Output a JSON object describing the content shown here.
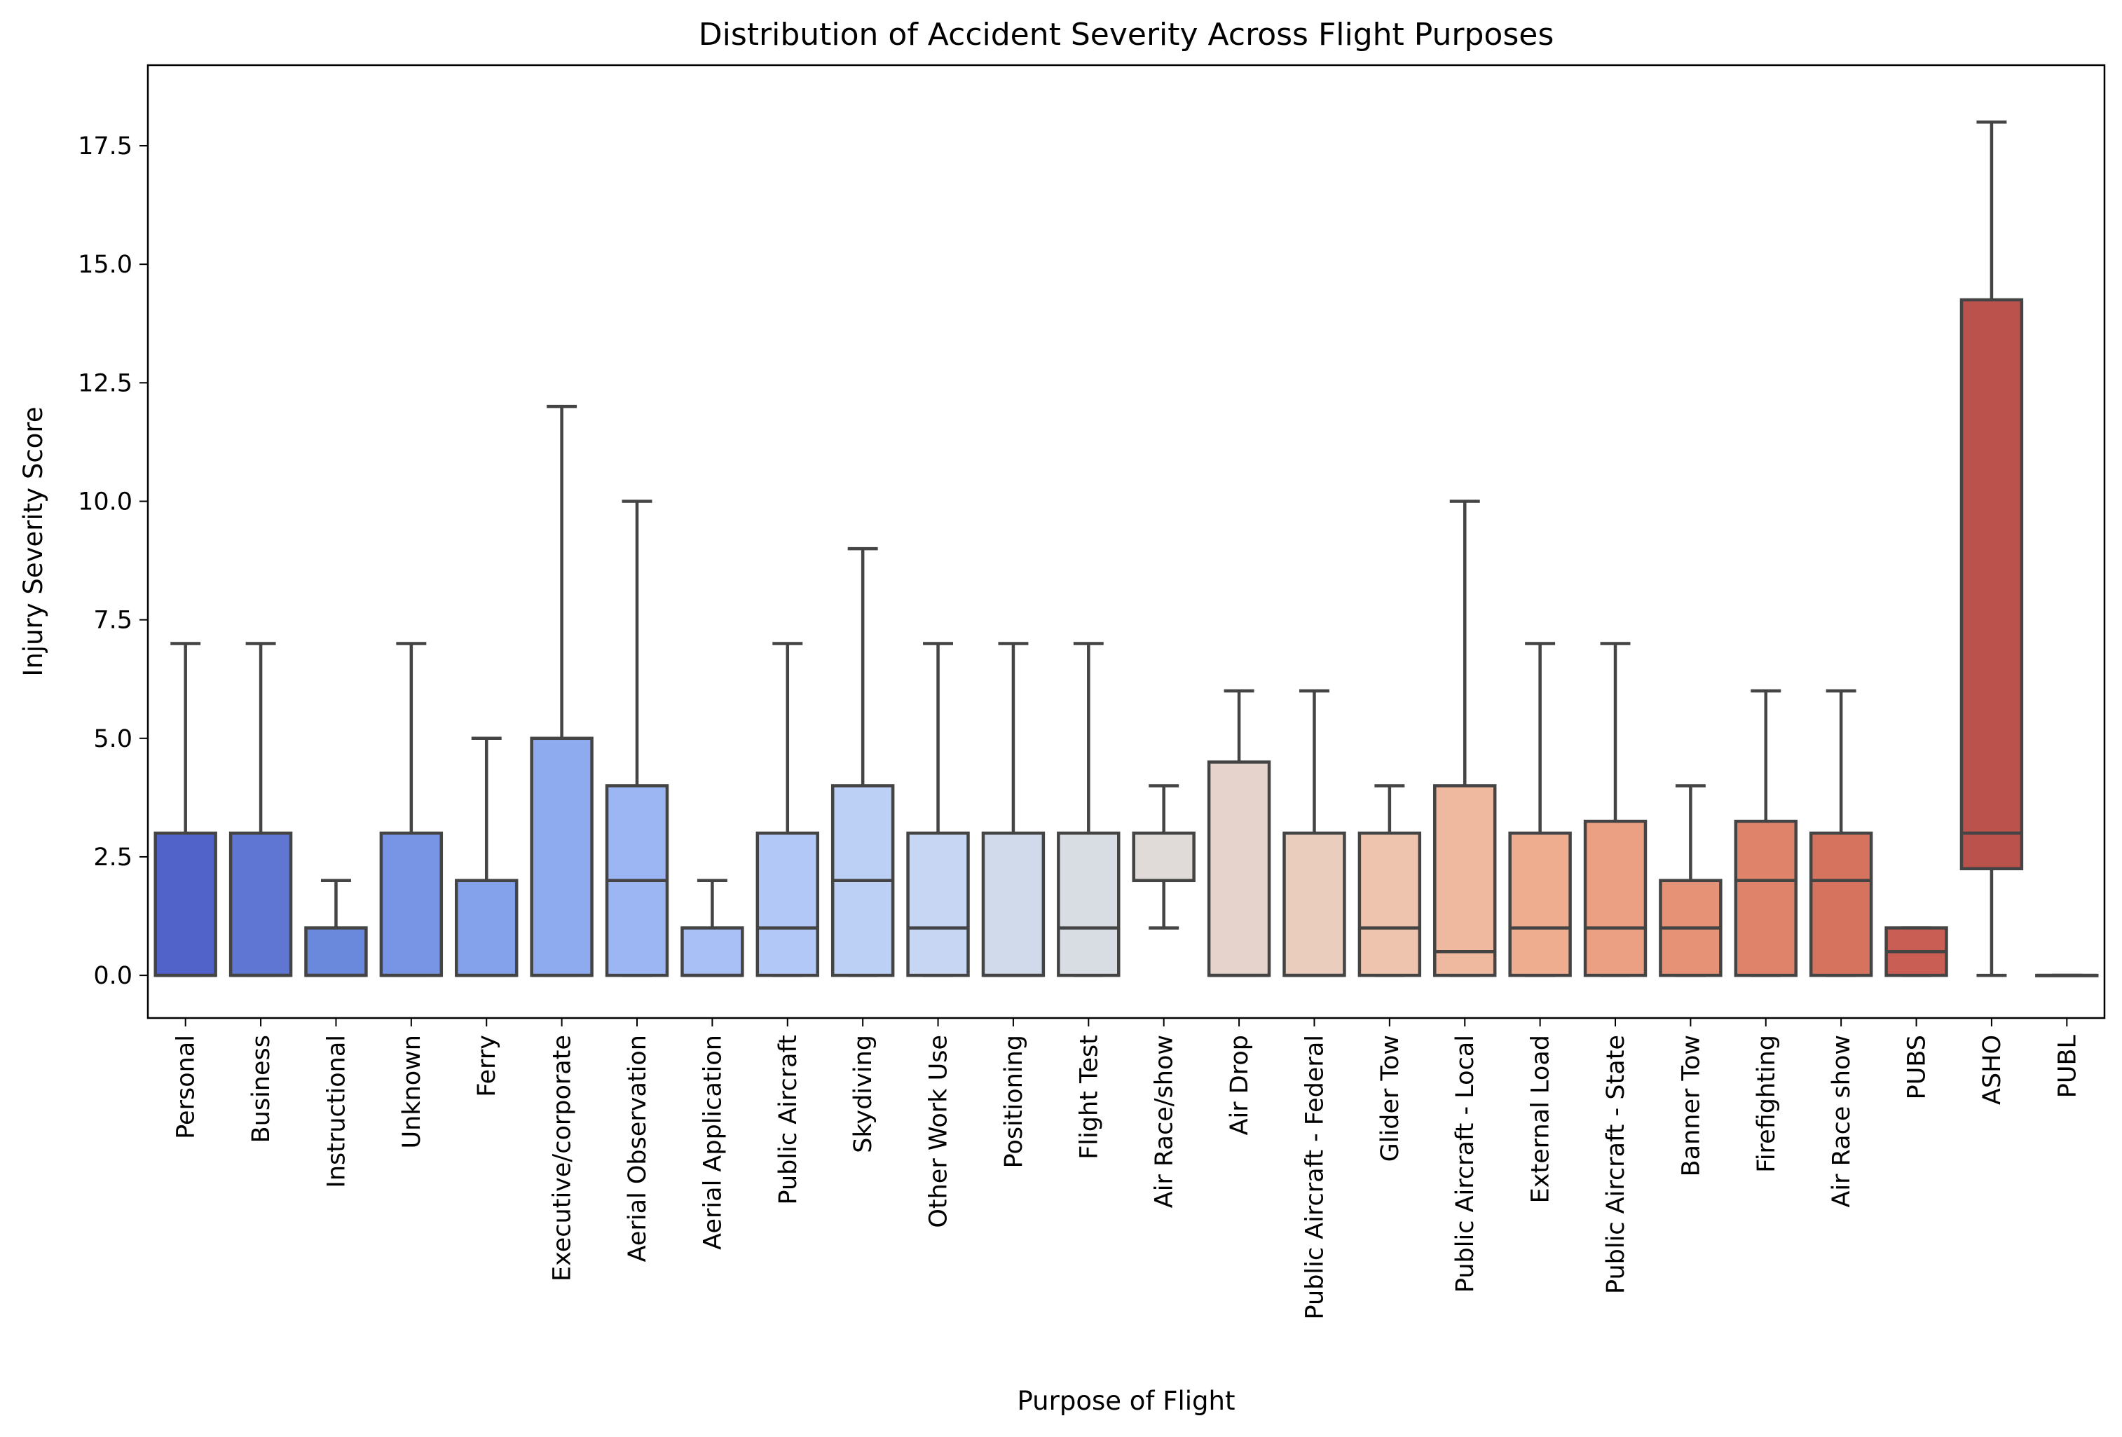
{
  "chart_data": {
    "type": "box",
    "title": "Distribution of Accident Severity Across Flight Purposes",
    "xlabel": "Purpose of Flight",
    "ylabel": "Injury Severity Score",
    "ylim": [
      -0.9,
      19.2
    ],
    "yticks": [
      0.0,
      2.5,
      5.0,
      7.5,
      10.0,
      12.5,
      15.0,
      17.5
    ],
    "ytick_labels": [
      "0.0",
      "2.5",
      "5.0",
      "7.5",
      "10.0",
      "12.5",
      "15.0",
      "17.5"
    ],
    "grid": false,
    "legend": "none",
    "colors": {
      "box_edge": "#444444",
      "axis": "#000000",
      "palette_start": "#3b4cc0",
      "palette_mid": "#dddddd",
      "palette_end": "#b40426"
    },
    "categories": [
      "Personal",
      "Business",
      "Instructional",
      "Unknown",
      "Ferry",
      "Executive/corporate",
      "Aerial Observation",
      "Aerial Application",
      "Public Aircraft",
      "Skydiving",
      "Other Work Use",
      "Positioning",
      "Flight Test",
      "Air Race/show",
      "Air Drop",
      "Public Aircraft - Federal",
      "Glider Tow",
      "Public Aircraft - Local",
      "External Load",
      "Public Aircraft - State",
      "Banner Tow",
      "Firefighting",
      "Air Race show",
      "PUBS",
      "ASHO",
      "PUBL"
    ],
    "boxes": [
      {
        "whisker_low": 0,
        "q1": 0,
        "median": 0,
        "q3": 3,
        "whisker_high": 7,
        "color": "#5162c9"
      },
      {
        "whisker_low": 0,
        "q1": 0,
        "median": 0,
        "q3": 3,
        "whisker_high": 7,
        "color": "#5f76d2"
      },
      {
        "whisker_low": 0,
        "q1": 0,
        "median": 0,
        "q3": 1,
        "whisker_high": 2,
        "color": "#6a88dc"
      },
      {
        "whisker_low": 0,
        "q1": 0,
        "median": 0,
        "q3": 3,
        "whisker_high": 7,
        "color": "#7895e5"
      },
      {
        "whisker_low": 0,
        "q1": 0,
        "median": 0,
        "q3": 2,
        "whisker_high": 5,
        "color": "#84a2eb"
      },
      {
        "whisker_low": 0,
        "q1": 0,
        "median": 0,
        "q3": 5,
        "whisker_high": 12,
        "color": "#8fabef"
      },
      {
        "whisker_low": 0,
        "q1": 0,
        "median": 2,
        "q3": 4,
        "whisker_high": 10,
        "color": "#9bb6f3"
      },
      {
        "whisker_low": 0,
        "q1": 0,
        "median": 0,
        "q3": 1,
        "whisker_high": 2,
        "color": "#a8c0f5"
      },
      {
        "whisker_low": 0,
        "q1": 0,
        "median": 1,
        "q3": 3,
        "whisker_high": 7,
        "color": "#b2c8f6"
      },
      {
        "whisker_low": 0,
        "q1": 0,
        "median": 2,
        "q3": 4,
        "whisker_high": 9,
        "color": "#bccff5"
      },
      {
        "whisker_low": 0,
        "q1": 0,
        "median": 1,
        "q3": 3,
        "whisker_high": 7,
        "color": "#c7d6f2"
      },
      {
        "whisker_low": 0,
        "q1": 0,
        "median": 0,
        "q3": 3,
        "whisker_high": 7,
        "color": "#d0daea"
      },
      {
        "whisker_low": 0,
        "q1": 0,
        "median": 1,
        "q3": 3,
        "whisker_high": 7,
        "color": "#d8dce3"
      },
      {
        "whisker_low": 1,
        "q1": 2,
        "median": 2,
        "q3": 3,
        "whisker_high": 4,
        "color": "#e0dbd9"
      },
      {
        "whisker_low": 0,
        "q1": 0,
        "median": 0,
        "q3": 4.5,
        "whisker_high": 6,
        "color": "#e6d4cc"
      },
      {
        "whisker_low": 0,
        "q1": 0,
        "median": 0,
        "q3": 3,
        "whisker_high": 6,
        "color": "#ebcdbd"
      },
      {
        "whisker_low": 0,
        "q1": 0,
        "median": 1,
        "q3": 3,
        "whisker_high": 4,
        "color": "#eec4af"
      },
      {
        "whisker_low": 0,
        "q1": 0,
        "median": 0.5,
        "q3": 4,
        "whisker_high": 10,
        "color": "#efb9a0"
      },
      {
        "whisker_low": 0,
        "q1": 0,
        "median": 1,
        "q3": 3,
        "whisker_high": 7,
        "color": "#efad90"
      },
      {
        "whisker_low": 0,
        "q1": 0,
        "median": 1,
        "q3": 3.25,
        "whisker_high": 7,
        "color": "#eba084"
      },
      {
        "whisker_low": 0,
        "q1": 0,
        "median": 1,
        "q3": 2,
        "whisker_high": 4,
        "color": "#e59276"
      },
      {
        "whisker_low": 0,
        "q1": 0,
        "median": 2,
        "q3": 3.25,
        "whisker_high": 6,
        "color": "#df836b"
      },
      {
        "whisker_low": 0,
        "q1": 0,
        "median": 2,
        "q3": 3,
        "whisker_high": 6,
        "color": "#d5735e"
      },
      {
        "whisker_low": 0,
        "q1": 0,
        "median": 0.5,
        "q3": 1,
        "whisker_high": 1,
        "color": "#c95e55"
      },
      {
        "whisker_low": 0,
        "q1": 2.25,
        "median": 3,
        "q3": 14.25,
        "whisker_high": 18,
        "color": "#bb524c"
      },
      {
        "whisker_low": 0,
        "q1": 0,
        "median": 0,
        "q3": 0,
        "whisker_high": 0,
        "color": "#b04440"
      }
    ]
  }
}
